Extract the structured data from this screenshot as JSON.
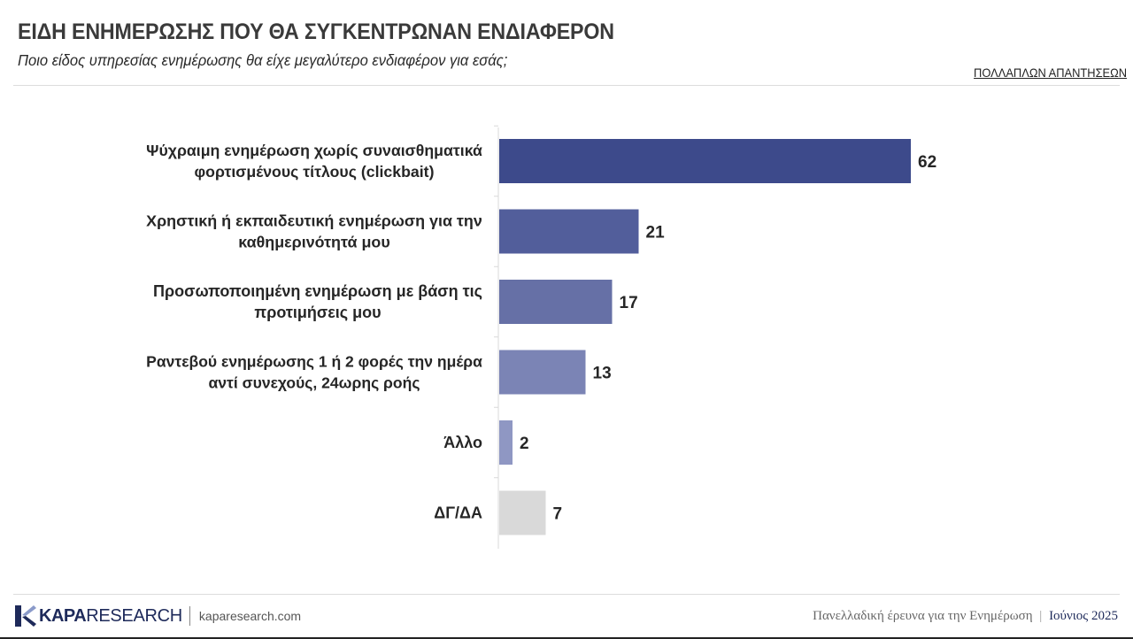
{
  "header": {
    "title": "ΕΙΔΗ ΕΝΗΜΕΡΩΣΗΣ ΠΟΥ ΘΑ ΣΥΓΚΕΝΤΡΩΝΑΝ ΕΝΔΙΑΦΕΡΟΝ",
    "subtitle": "Ποιο είδος υπηρεσίας ενημέρωσης θα είχε μεγαλύτερο ενδιαφέρον για εσάς;",
    "note": "ΠΟΛΛΑΠΛΩΝ ΑΠΑΝΤΗΣΕΩΝ"
  },
  "chart_data": {
    "type": "bar",
    "orientation": "horizontal",
    "categories": [
      [
        "Ψύχραιμη ενημέρωση χωρίς συναισθηματικά",
        "φορτισμένους τίτλους (clickbait)"
      ],
      [
        "Χρηστική ή εκπαιδευτική ενημέρωση για την",
        "καθημερινότητά μου"
      ],
      [
        "Προσωποποιημένη ενημέρωση με βάση τις",
        "προτιμήσεις μου"
      ],
      [
        "Ραντεβού ενημέρωσης 1 ή 2 φορές την ημέρα",
        "αντί συνεχούς, 24ωρης ροής"
      ],
      [
        "Άλλο"
      ],
      [
        "ΔΓ/ΔΑ"
      ]
    ],
    "values": [
      62,
      21,
      17,
      13,
      2,
      7
    ],
    "colors": [
      "#3d4a8b",
      "#525e9b",
      "#6670a6",
      "#7b84b5",
      "#8f97c3",
      "#d9d9d9"
    ],
    "xlim": [
      0,
      100
    ],
    "grid": false,
    "legend": "none"
  },
  "footer": {
    "brand_bold": "KAPA",
    "brand_light": "RESEARCH",
    "url": "kaparesearch.com",
    "survey": "Πανελλαδική έρευνα για την Ενημέρωση",
    "separator": "|",
    "date": "Ιούνιος 2025"
  }
}
